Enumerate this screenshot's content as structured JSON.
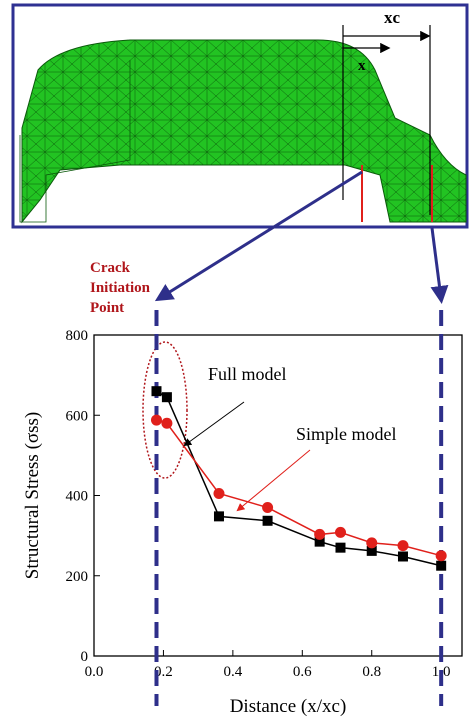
{
  "figure_labels": [
    "xc",
    "x"
  ],
  "chart_data": {
    "type": "line",
    "x_label": "Distance (x/xc)",
    "y_label": "Structural Stress (σss)",
    "annotations": [
      "Crack Initiation Point",
      "Full model",
      "Simple model"
    ],
    "xlim": [
      0,
      1.06
    ],
    "ylim": [
      0,
      800
    ],
    "xticks": [
      {
        "value": 0,
        "label": "0.0"
      },
      0.2,
      0.4,
      0.6,
      0.8,
      {
        "value": 1,
        "label": "1.0"
      }
    ],
    "yticks": [
      0,
      200,
      400,
      600,
      800
    ],
    "vlines": [
      0.18,
      1.0
    ],
    "series": [
      {
        "name": "Full model",
        "color": "#000000",
        "marker": "square",
        "x": [
          0.18,
          0.21,
          0.36,
          0.5,
          0.65,
          0.71,
          0.8,
          0.89,
          1.0
        ],
        "values": [
          660,
          645,
          348,
          337,
          285,
          270,
          262,
          248,
          225
        ]
      },
      {
        "name": "Simple model",
        "color": "#e0201b",
        "marker": "circle",
        "x": [
          0.18,
          0.21,
          0.36,
          0.5,
          0.65,
          0.71,
          0.8,
          0.89,
          1.0
        ],
        "values": [
          588,
          580,
          405,
          370,
          303,
          308,
          282,
          275,
          250
        ]
      }
    ]
  }
}
